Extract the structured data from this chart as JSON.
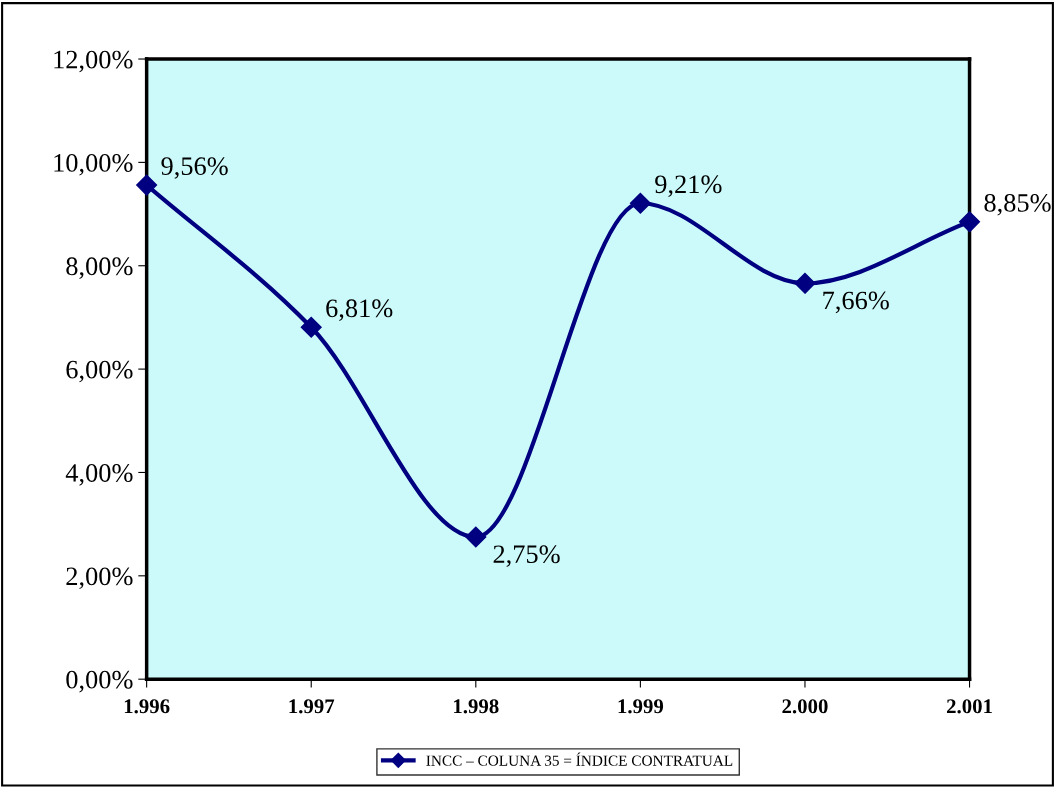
{
  "chart_data": {
    "type": "line",
    "categories": [
      "1.996",
      "1.997",
      "1.998",
      "1.999",
      "2.000",
      "2.001"
    ],
    "series": [
      {
        "name": "INCC – COLUNA 35 = ÍNDICE CONTRATUAL",
        "color": "#000080",
        "values": [
          9.56,
          6.81,
          2.75,
          9.21,
          7.66,
          8.85
        ],
        "value_labels": [
          "9,56%",
          "6,81%",
          "2,75%",
          "9,21%",
          "7,66%",
          "8,85%"
        ]
      }
    ],
    "ylim": [
      0,
      12
    ],
    "yticks": [
      {
        "value": 0,
        "label": "0,00%"
      },
      {
        "value": 2,
        "label": "2,00%"
      },
      {
        "value": 4,
        "label": "4,00%"
      },
      {
        "value": 6,
        "label": "6,00%"
      },
      {
        "value": 8,
        "label": "8,00%"
      },
      {
        "value": 10,
        "label": "10,00%"
      },
      {
        "value": 12,
        "label": "12,00%"
      }
    ],
    "legend": "bottom",
    "marker": "diamond",
    "line_style": "solid",
    "grid": false
  }
}
